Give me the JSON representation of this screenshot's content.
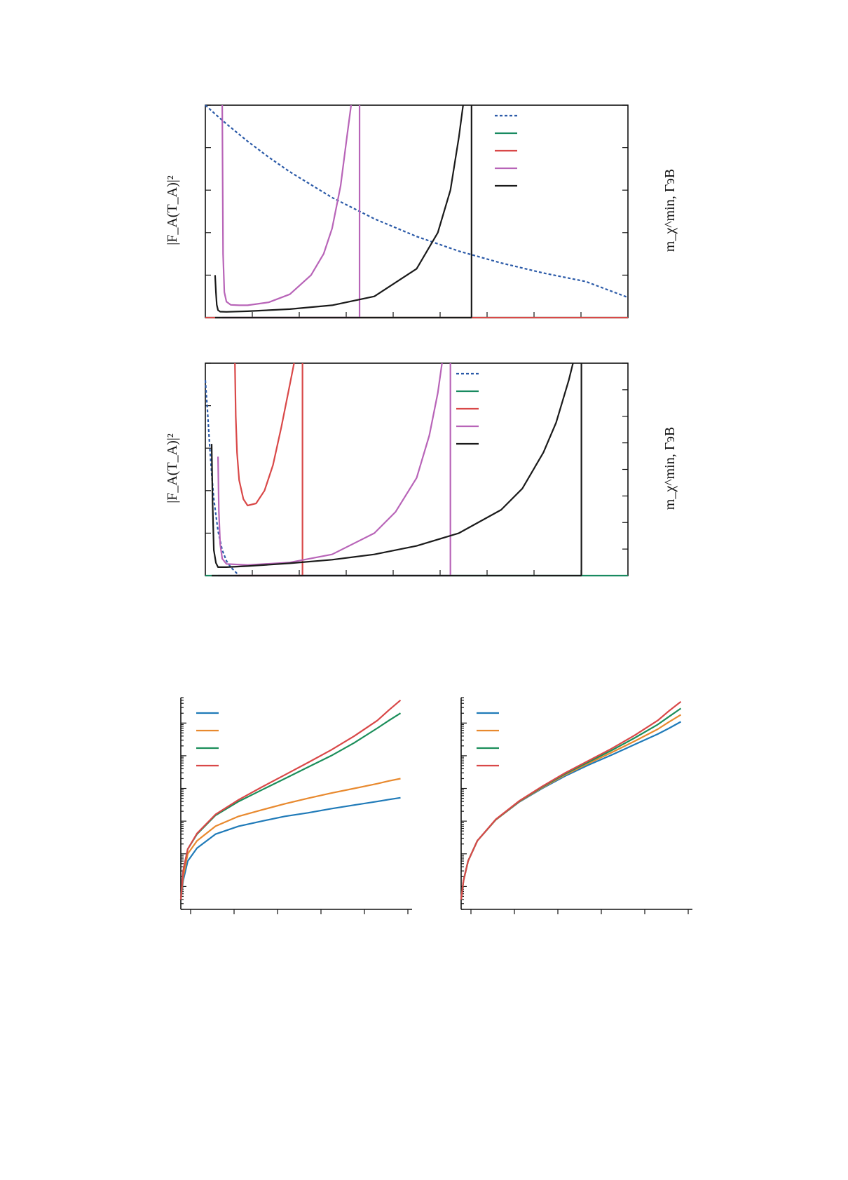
{
  "chart_data": [
    {
      "type": "line",
      "panel": "top",
      "ylabel": "|F_A(T_A)|²",
      "xlabel": "m_χ^min, ГэВ",
      "x": [
        0,
        0.025,
        0.05,
        0.1,
        0.15,
        0.2,
        0.3,
        0.4,
        0.5,
        0.6,
        0.7,
        0.8,
        0.9,
        1.0
      ],
      "xlim": [
        0,
        1
      ],
      "ylim": [
        0,
        1
      ],
      "legend": "top-right",
      "series": [
        {
          "color": "#2b5aa8",
          "dashed": true,
          "values": [
            1.0,
            0.955,
            0.912,
            0.83,
            0.755,
            0.686,
            0.565,
            0.465,
            0.382,
            0.313,
            0.257,
            0.21,
            0.17,
            0.095
          ]
        },
        {
          "color": "#188a60",
          "values": [
            0,
            0,
            0,
            0,
            0,
            0,
            0,
            0,
            0,
            0,
            0,
            0,
            0,
            0
          ]
        },
        {
          "color": "#d94848",
          "values": [
            0,
            0,
            0,
            0,
            0,
            0,
            0,
            0,
            0,
            0,
            0,
            0,
            0,
            0
          ]
        },
        {
          "color": "#b864b8",
          "x": [
            0.04,
            0.042,
            0.045,
            0.05,
            0.06,
            0.08,
            0.1,
            0.15,
            0.2,
            0.25,
            0.28,
            0.3,
            0.32,
            0.335,
            0.345
          ],
          "values": [
            1.0,
            0.3,
            0.12,
            0.075,
            0.06,
            0.058,
            0.058,
            0.072,
            0.11,
            0.2,
            0.3,
            0.42,
            0.62,
            0.85,
            1.0
          ]
        },
        {
          "color": "#1a1a1a",
          "x": [
            0.023,
            0.025,
            0.027,
            0.03,
            0.035,
            0.05,
            0.1,
            0.2,
            0.3,
            0.4,
            0.5,
            0.55,
            0.58,
            0.6,
            0.61
          ],
          "values": [
            0.2,
            0.12,
            0.06,
            0.035,
            0.028,
            0.027,
            0.03,
            0.04,
            0.058,
            0.1,
            0.23,
            0.4,
            0.6,
            0.85,
            1.0
          ]
        }
      ]
    },
    {
      "type": "line",
      "panel": "middle",
      "ylabel": "|F_A(T_A)|²",
      "xlabel": "m_χ^min, ГэВ",
      "xlim": [
        0,
        1
      ],
      "ylim": [
        0,
        1
      ],
      "legend": "top-right",
      "series": [
        {
          "color": "#2b5aa8",
          "dashed": true,
          "x": [
            0,
            0.005,
            0.01,
            0.015,
            0.02,
            0.03,
            0.04,
            0.05,
            0.06,
            0.07,
            0.08
          ],
          "values": [
            0.92,
            0.78,
            0.62,
            0.48,
            0.36,
            0.21,
            0.12,
            0.07,
            0.04,
            0.02,
            0.0
          ]
        },
        {
          "color": "#188a60",
          "values": [
            0,
            0
          ]
        },
        {
          "color": "#d94848",
          "x": [
            0.07,
            0.072,
            0.075,
            0.08,
            0.09,
            0.1,
            0.12,
            0.14,
            0.16,
            0.18,
            0.2,
            0.21
          ],
          "values": [
            1.0,
            0.75,
            0.58,
            0.45,
            0.36,
            0.33,
            0.34,
            0.4,
            0.52,
            0.7,
            0.9,
            1.0
          ]
        },
        {
          "color": "#b864b8",
          "x": [
            0.03,
            0.032,
            0.035,
            0.04,
            0.05,
            0.1,
            0.2,
            0.3,
            0.4,
            0.45,
            0.5,
            0.53,
            0.55,
            0.56
          ],
          "values": [
            0.56,
            0.3,
            0.15,
            0.08,
            0.055,
            0.05,
            0.062,
            0.1,
            0.2,
            0.3,
            0.46,
            0.66,
            0.86,
            1.0
          ]
        },
        {
          "color": "#1a1a1a",
          "x": [
            0.015,
            0.017,
            0.02,
            0.025,
            0.03,
            0.05,
            0.1,
            0.2,
            0.3,
            0.4,
            0.5,
            0.6,
            0.7,
            0.75,
            0.8,
            0.83,
            0.86,
            0.87
          ],
          "values": [
            0.62,
            0.35,
            0.12,
            0.06,
            0.04,
            0.04,
            0.045,
            0.058,
            0.075,
            0.1,
            0.14,
            0.2,
            0.31,
            0.41,
            0.58,
            0.72,
            0.92,
            1.0
          ]
        }
      ]
    },
    {
      "type": "line",
      "panel": "bottom-left",
      "yscale": "log",
      "legend": "top-left",
      "x": [
        0,
        0.01,
        0.03,
        0.07,
        0.15,
        0.25,
        0.35,
        0.45,
        0.55,
        0.65,
        0.75,
        0.85,
        0.9,
        0.95
      ],
      "ylim": [
        0.2,
        600000
      ],
      "series": [
        {
          "color": "#1f7ab8",
          "values": [
            0.4,
            1.5,
            6,
            15,
            40,
            70,
            100,
            140,
            180,
            240,
            310,
            400,
            460,
            520
          ]
        },
        {
          "color": "#e8892e",
          "values": [
            0.4,
            2,
            10,
            25,
            70,
            140,
            220,
            340,
            500,
            720,
            1000,
            1400,
            1700,
            2000
          ]
        },
        {
          "color": "#1b8e5a",
          "values": [
            0.4,
            3,
            14,
            40,
            150,
            400,
            900,
            2000,
            4500,
            10000,
            25000,
            70000,
            120000,
            200000
          ]
        },
        {
          "color": "#d94848",
          "values": [
            0.4,
            3,
            14,
            42,
            160,
            450,
            1100,
            2600,
            6200,
            15000,
            40000,
            120000,
            250000,
            500000
          ]
        }
      ]
    },
    {
      "type": "line",
      "panel": "bottom-right",
      "yscale": "log",
      "legend": "top-left",
      "x": [
        0,
        0.01,
        0.03,
        0.07,
        0.15,
        0.25,
        0.35,
        0.45,
        0.55,
        0.65,
        0.75,
        0.85,
        0.9,
        0.95
      ],
      "ylim": [
        0.2,
        600000
      ],
      "series": [
        {
          "color": "#1f7ab8",
          "values": [
            0.4,
            1.5,
            6,
            25,
            110,
            380,
            1000,
            2400,
            5200,
            10500,
            22000,
            46000,
            70000,
            110000
          ]
        },
        {
          "color": "#e8892e",
          "values": [
            0.4,
            1.5,
            6,
            25,
            110,
            390,
            1050,
            2600,
            5800,
            12500,
            28000,
            65000,
            110000,
            180000
          ]
        },
        {
          "color": "#1b8e5a",
          "values": [
            0.4,
            1.5,
            6,
            25,
            112,
            400,
            1100,
            2800,
            6400,
            14500,
            35000,
            90000,
            160000,
            280000
          ]
        },
        {
          "color": "#d94848",
          "values": [
            0.4,
            1.5,
            6,
            25,
            114,
            410,
            1150,
            3000,
            7000,
            16500,
            42000,
            120000,
            240000,
            450000
          ]
        }
      ]
    }
  ]
}
